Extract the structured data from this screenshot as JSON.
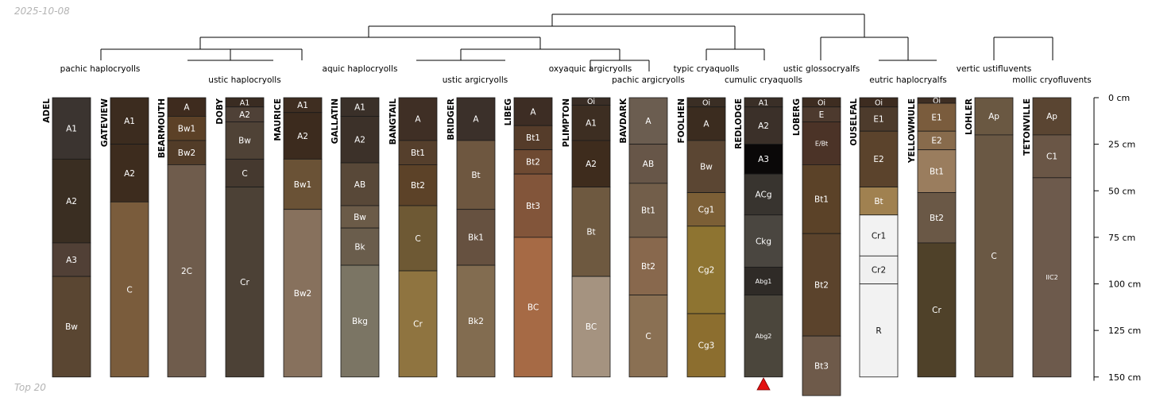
{
  "header": {
    "date": "2025-10-08"
  },
  "footer": {
    "label": "Top 20"
  },
  "colors": {
    "line": "#000000",
    "hz_border": "#1a1a1a",
    "marker": "#e41010"
  },
  "depth_axis": {
    "unit": "cm",
    "max": 150,
    "range": [
      0,
      152
    ],
    "ticks": [
      {
        "value": 0,
        "label": "0 cm"
      },
      {
        "value": 25,
        "label": "25 cm"
      },
      {
        "value": 50,
        "label": "50 cm"
      },
      {
        "value": 75,
        "label": "75 cm"
      },
      {
        "value": 100,
        "label": "100 cm"
      },
      {
        "value": 125,
        "label": "125 cm"
      },
      {
        "value": 150,
        "label": "150 cm"
      }
    ]
  },
  "taxa_labels": [
    "pachic haplocryolls",
    "ustic haplocryolls",
    "aquic haplocryolls",
    "ustic argicryolls",
    "oxyaquic argicryolls",
    "pachic argicryolls",
    "typic cryaquolls",
    "cumulic cryaquolls",
    "ustic glossocryalfs",
    "eutric haplocryalfs",
    "vertic ustifluvents",
    "mollic cryofluvents"
  ],
  "highlight_profile": "REDLODGE",
  "profiles": [
    {
      "name": "ADEL",
      "horizons": [
        {
          "name": "A1",
          "top": 0,
          "bottom": 33,
          "color": "#3b3430"
        },
        {
          "name": "A2",
          "top": 33,
          "bottom": 78,
          "color": "#3a2e22"
        },
        {
          "name": "A3",
          "top": 78,
          "bottom": 96,
          "color": "#514036"
        },
        {
          "name": "Bw",
          "top": 96,
          "bottom": 150,
          "color": "#5a4632"
        }
      ]
    },
    {
      "name": "GATEVIEW",
      "horizons": [
        {
          "name": "A1",
          "top": 0,
          "bottom": 25,
          "color": "#3c2c1f"
        },
        {
          "name": "A2",
          "top": 25,
          "bottom": 56,
          "color": "#3d2c1e"
        },
        {
          "name": "C",
          "top": 56,
          "bottom": 150,
          "color": "#7a5c3c"
        }
      ]
    },
    {
      "name": "BEARMOUTH",
      "horizons": [
        {
          "name": "A",
          "top": 0,
          "bottom": 10,
          "color": "#3e2b1e"
        },
        {
          "name": "Bw1",
          "top": 10,
          "bottom": 23,
          "color": "#5c4127"
        },
        {
          "name": "Bw2",
          "top": 23,
          "bottom": 36,
          "color": "#523c28"
        },
        {
          "name": "2C",
          "top": 36,
          "bottom": 150,
          "color": "#6f5c4c"
        }
      ]
    },
    {
      "name": "DOBY",
      "horizons": [
        {
          "name": "A1",
          "top": 0,
          "bottom": 5,
          "color": "#3a2c22"
        },
        {
          "name": "A2",
          "top": 5,
          "bottom": 13,
          "color": "#4f4137"
        },
        {
          "name": "Bw",
          "top": 13,
          "bottom": 33,
          "color": "#4f4236"
        },
        {
          "name": "C",
          "top": 33,
          "bottom": 48,
          "color": "#45392f"
        },
        {
          "name": "Cr",
          "top": 48,
          "bottom": 150,
          "color": "#4c4136"
        }
      ]
    },
    {
      "name": "MAURICE",
      "horizons": [
        {
          "name": "A1",
          "top": 0,
          "bottom": 8,
          "color": "#3f2e21"
        },
        {
          "name": "A2",
          "top": 8,
          "bottom": 33,
          "color": "#3c2b1e"
        },
        {
          "name": "Bw1",
          "top": 33,
          "bottom": 60,
          "color": "#6a5236"
        },
        {
          "name": "Bw2",
          "top": 60,
          "bottom": 150,
          "color": "#87715d"
        }
      ]
    },
    {
      "name": "GALLATIN",
      "horizons": [
        {
          "name": "A1",
          "top": 0,
          "bottom": 10,
          "color": "#3a3029"
        },
        {
          "name": "A2",
          "top": 10,
          "bottom": 35,
          "color": "#3c3129"
        },
        {
          "name": "AB",
          "top": 35,
          "bottom": 58,
          "color": "#584838"
        },
        {
          "name": "Bw",
          "top": 58,
          "bottom": 70,
          "color": "#6b5b48"
        },
        {
          "name": "Bk",
          "top": 70,
          "bottom": 90,
          "color": "#6a5d4c"
        },
        {
          "name": "Bkg",
          "top": 90,
          "bottom": 150,
          "color": "#7b7564"
        }
      ]
    },
    {
      "name": "BANGTAIL",
      "horizons": [
        {
          "name": "A",
          "top": 0,
          "bottom": 23,
          "color": "#3f2f25"
        },
        {
          "name": "Bt1",
          "top": 23,
          "bottom": 36,
          "color": "#553f2c"
        },
        {
          "name": "Bt2",
          "top": 36,
          "bottom": 58,
          "color": "#5c4228"
        },
        {
          "name": "C",
          "top": 58,
          "bottom": 93,
          "color": "#6e5934"
        },
        {
          "name": "Cr",
          "top": 93,
          "bottom": 150,
          "color": "#8f7440"
        }
      ]
    },
    {
      "name": "BRIDGER",
      "horizons": [
        {
          "name": "A",
          "top": 0,
          "bottom": 23,
          "color": "#3b302a"
        },
        {
          "name": "Bt",
          "top": 23,
          "bottom": 60,
          "color": "#6e5740"
        },
        {
          "name": "Bk1",
          "top": 60,
          "bottom": 90,
          "color": "#665140"
        },
        {
          "name": "Bk2",
          "top": 90,
          "bottom": 150,
          "color": "#826c50"
        }
      ]
    },
    {
      "name": "LIBEG",
      "horizons": [
        {
          "name": "A",
          "top": 0,
          "bottom": 15,
          "color": "#3d2d24"
        },
        {
          "name": "Bt1",
          "top": 15,
          "bottom": 28,
          "color": "#553c2a"
        },
        {
          "name": "Bt2",
          "top": 28,
          "bottom": 41,
          "color": "#6e4a32"
        },
        {
          "name": "Bt3",
          "top": 41,
          "bottom": 75,
          "color": "#82553a"
        },
        {
          "name": "BC",
          "top": 75,
          "bottom": 150,
          "color": "#a66a45"
        }
      ]
    },
    {
      "name": "PLIMPTON",
      "horizons": [
        {
          "name": "Oi",
          "top": 0,
          "bottom": 4,
          "color": "#3a2e26"
        },
        {
          "name": "A1",
          "top": 4,
          "bottom": 23,
          "color": "#3d2e22"
        },
        {
          "name": "A2",
          "top": 23,
          "bottom": 48,
          "color": "#3e2c1d"
        },
        {
          "name": "Bt",
          "top": 48,
          "bottom": 96,
          "color": "#6e5940"
        },
        {
          "name": "BC",
          "top": 96,
          "bottom": 150,
          "color": "#a59380"
        }
      ]
    },
    {
      "name": "BAVDARK",
      "horizons": [
        {
          "name": "A",
          "top": 0,
          "bottom": 25,
          "color": "#6b5d50"
        },
        {
          "name": "AB",
          "top": 25,
          "bottom": 46,
          "color": "#675648"
        },
        {
          "name": "Bt1",
          "top": 46,
          "bottom": 75,
          "color": "#725e4a"
        },
        {
          "name": "Bt2",
          "top": 75,
          "bottom": 106,
          "color": "#88684d"
        },
        {
          "name": "C",
          "top": 106,
          "bottom": 150,
          "color": "#8a7053"
        }
      ]
    },
    {
      "name": "FOOLHEN",
      "horizons": [
        {
          "name": "Oi",
          "top": 0,
          "bottom": 5,
          "color": "#3a2e24"
        },
        {
          "name": "A",
          "top": 5,
          "bottom": 23,
          "color": "#3b2c1f"
        },
        {
          "name": "Bw",
          "top": 23,
          "bottom": 51,
          "color": "#5b4633"
        },
        {
          "name": "Cg1",
          "top": 51,
          "bottom": 69,
          "color": "#7c5f36"
        },
        {
          "name": "Cg2",
          "top": 69,
          "bottom": 116,
          "color": "#8e7431"
        },
        {
          "name": "Cg3",
          "top": 116,
          "bottom": 150,
          "color": "#8c6e2f"
        }
      ]
    },
    {
      "name": "REDLODGE",
      "horizons": [
        {
          "name": "A1",
          "top": 0,
          "bottom": 5,
          "color": "#3a2f27"
        },
        {
          "name": "A2",
          "top": 5,
          "bottom": 25,
          "color": "#3b3029"
        },
        {
          "name": "A3",
          "top": 25,
          "bottom": 41,
          "color": "#0a0808"
        },
        {
          "name": "ACg",
          "top": 41,
          "bottom": 63,
          "color": "#38342f"
        },
        {
          "name": "Ckg",
          "top": 63,
          "bottom": 91,
          "color": "#4a4640"
        },
        {
          "name": "Abg1",
          "top": 91,
          "bottom": 106,
          "color": "#2f2b27"
        },
        {
          "name": "Abg2",
          "top": 106,
          "bottom": 150,
          "color": "#4b463c"
        }
      ]
    },
    {
      "name": "LOBERG",
      "horizons": [
        {
          "name": "Oi",
          "top": 0,
          "bottom": 5,
          "color": "#3e2d21"
        },
        {
          "name": "E",
          "top": 5,
          "bottom": 13,
          "color": "#4d3a2e"
        },
        {
          "name": "E/Bt",
          "top": 13,
          "bottom": 36,
          "color": "#4b3327"
        },
        {
          "name": "Bt1",
          "top": 36,
          "bottom": 73,
          "color": "#5b4228"
        },
        {
          "name": "Bt2",
          "top": 73,
          "bottom": 128,
          "color": "#5b432c"
        },
        {
          "name": "Bt3",
          "top": 128,
          "bottom": 160,
          "color": "#6e5a4a"
        }
      ]
    },
    {
      "name": "OUSELFAL",
      "horizons": [
        {
          "name": "Oi",
          "top": 0,
          "bottom": 5,
          "color": "#3d2c20"
        },
        {
          "name": "E1",
          "top": 5,
          "bottom": 18,
          "color": "#4d3b2c"
        },
        {
          "name": "E2",
          "top": 18,
          "bottom": 48,
          "color": "#5b432c"
        },
        {
          "name": "Bt",
          "top": 48,
          "bottom": 63,
          "color": "#a08150"
        },
        {
          "name": "Cr1",
          "top": 63,
          "bottom": 85,
          "color": "#f2f2f2"
        },
        {
          "name": "Cr2",
          "top": 85,
          "bottom": 100,
          "color": "#f0f0f0"
        },
        {
          "name": "R",
          "top": 100,
          "bottom": 150,
          "color": "#f2f2f2"
        }
      ]
    },
    {
      "name": "YELLOWMULE",
      "horizons": [
        {
          "name": "Oi",
          "top": 0,
          "bottom": 3,
          "color": "#3e2e23"
        },
        {
          "name": "E1",
          "top": 3,
          "bottom": 18,
          "color": "#7a5c3d"
        },
        {
          "name": "E2",
          "top": 18,
          "bottom": 28,
          "color": "#886b4c"
        },
        {
          "name": "Bt1",
          "top": 28,
          "bottom": 51,
          "color": "#9a7d5e"
        },
        {
          "name": "Bt2",
          "top": 51,
          "bottom": 78,
          "color": "#6a5846"
        },
        {
          "name": "Cr",
          "top": 78,
          "bottom": 150,
          "color": "#4f4129"
        }
      ]
    },
    {
      "name": "LOHLER",
      "horizons": [
        {
          "name": "Ap",
          "top": 0,
          "bottom": 20,
          "color": "#6a5842"
        },
        {
          "name": "C",
          "top": 20,
          "bottom": 150,
          "color": "#6a5844"
        }
      ]
    },
    {
      "name": "TETONVILLE",
      "horizons": [
        {
          "name": "Ap",
          "top": 0,
          "bottom": 20,
          "color": "#5a4532"
        },
        {
          "name": "C1",
          "top": 20,
          "bottom": 43,
          "color": "#6a5646"
        },
        {
          "name": "IIC2",
          "top": 43,
          "bottom": 150,
          "color": "#6d5a4c"
        }
      ]
    }
  ]
}
